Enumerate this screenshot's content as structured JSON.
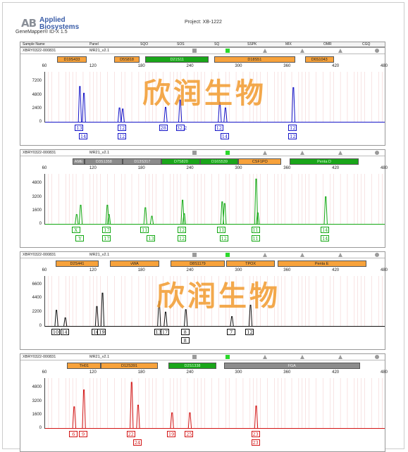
{
  "header": {
    "logo_mark": "AB",
    "logo_line1": "Applied",
    "logo_line2": "Biosystems",
    "subtitle": "GeneMapper® ID-X 1.5",
    "project": "Project: XB-1222"
  },
  "columns": [
    "Sample Name",
    "Panel",
    "SQO",
    "SOS",
    "SQ",
    "SSPK",
    "MIX",
    "OMR",
    "CGQ"
  ],
  "watermark": "欣润生物",
  "colors": {
    "blue": "#1414c8",
    "green": "#12a812",
    "black": "#111111",
    "red": "#d21414",
    "orange": "#f7a23b",
    "lime": "#1aa61a",
    "gray": "#8c8c8c"
  },
  "panels": [
    {
      "sample": "XBRY0322-000831",
      "panel": "MR21_v2.1",
      "dye": "blue",
      "x_ticks": [
        "60",
        "120",
        "180",
        "240",
        "300",
        "360",
        "420",
        "480"
      ],
      "y_ticks": [
        "7200",
        "4800",
        "2400",
        "0"
      ],
      "loci": [
        {
          "name": "D19S433",
          "color": "orange"
        },
        {
          "name": "D5S818",
          "color": "orange"
        },
        {
          "name": "D21S11",
          "color": "green"
        },
        {
          "name": "D18S51",
          "color": "orange"
        },
        {
          "name": "D6S1043",
          "color": "orange"
        }
      ],
      "chart_data": {
        "type": "line",
        "xlabel": "",
        "ylabel": "",
        "xlim": [
          60,
          480
        ],
        "ylim": [
          0,
          9000
        ],
        "peaks": [
          {
            "x": 103,
            "y": 6400
          },
          {
            "x": 108,
            "y": 5200
          },
          {
            "x": 152,
            "y": 2600
          },
          {
            "x": 156,
            "y": 2400
          },
          {
            "x": 209,
            "y": 2700
          },
          {
            "x": 227,
            "y": 4000
          },
          {
            "x": 276,
            "y": 3600
          },
          {
            "x": 283,
            "y": 2600
          },
          {
            "x": 367,
            "y": 6200
          }
        ]
      },
      "alleles": [
        {
          "x": 103,
          "row": 0,
          "label": "13"
        },
        {
          "x": 108,
          "row": 1,
          "label": "14"
        },
        {
          "x": 156,
          "row": 0,
          "label": "12"
        },
        {
          "x": 156,
          "row": 1,
          "label": "12"
        },
        {
          "x": 207,
          "row": 0,
          "label": "28"
        },
        {
          "x": 228,
          "row": 0,
          "label": "32.2"
        },
        {
          "x": 276,
          "row": 0,
          "label": "12"
        },
        {
          "x": 283,
          "row": 1,
          "label": "14"
        },
        {
          "x": 367,
          "row": 0,
          "label": "12"
        },
        {
          "x": 367,
          "row": 1,
          "label": "12"
        }
      ]
    },
    {
      "sample": "XBRY0322-000831",
      "panel": "MR21_v2.1",
      "dye": "green",
      "x_ticks": [
        "60",
        "120",
        "180",
        "240",
        "300",
        "360",
        "420",
        "480"
      ],
      "y_ticks": [
        "4800",
        "3200",
        "1600",
        "0"
      ],
      "loci": [
        {
          "name": "AME",
          "color": "gray"
        },
        {
          "name": "D3S1358",
          "color": "gray"
        },
        {
          "name": "D13S317",
          "color": "gray"
        },
        {
          "name": "D7S820",
          "color": "green"
        },
        {
          "name": "D16S539",
          "color": "green"
        },
        {
          "name": "CSF1PO",
          "color": "orange"
        },
        {
          "name": "Penta D",
          "color": "green"
        }
      ],
      "chart_data": {
        "type": "line",
        "xlabel": "",
        "ylabel": "",
        "xlim": [
          60,
          480
        ],
        "ylim": [
          0,
          6000
        ],
        "peaks": [
          {
            "x": 99,
            "y": 1200
          },
          {
            "x": 104,
            "y": 2300
          },
          {
            "x": 137,
            "y": 2300
          },
          {
            "x": 139,
            "y": 1200
          },
          {
            "x": 184,
            "y": 2000
          },
          {
            "x": 192,
            "y": 1000
          },
          {
            "x": 230,
            "y": 2900
          },
          {
            "x": 232,
            "y": 1300
          },
          {
            "x": 279,
            "y": 2700
          },
          {
            "x": 282,
            "y": 2500
          },
          {
            "x": 321,
            "y": 5400
          },
          {
            "x": 323,
            "y": 1400
          },
          {
            "x": 407,
            "y": 3300
          }
        ]
      },
      "alleles": [
        {
          "x": 99,
          "row": 0,
          "label": "X"
        },
        {
          "x": 104,
          "row": 1,
          "label": "Y"
        },
        {
          "x": 137,
          "row": 0,
          "label": "17"
        },
        {
          "x": 137,
          "row": 1,
          "label": "17"
        },
        {
          "x": 184,
          "row": 0,
          "label": "11"
        },
        {
          "x": 192,
          "row": 1,
          "label": "13"
        },
        {
          "x": 230,
          "row": 0,
          "label": "12"
        },
        {
          "x": 230,
          "row": 1,
          "label": "12"
        },
        {
          "x": 279,
          "row": 0,
          "label": "11"
        },
        {
          "x": 282,
          "row": 1,
          "label": "12"
        },
        {
          "x": 321,
          "row": 0,
          "label": "11"
        },
        {
          "x": 321,
          "row": 1,
          "label": "11"
        },
        {
          "x": 407,
          "row": 0,
          "label": "14"
        },
        {
          "x": 407,
          "row": 1,
          "label": "14"
        }
      ]
    },
    {
      "sample": "XBRY0322-000831",
      "panel": "MR21_v2.1",
      "dye": "black",
      "x_ticks": [
        "60",
        "120",
        "180",
        "240",
        "300",
        "360",
        "420",
        "480"
      ],
      "y_ticks": [
        "6600",
        "4400",
        "2200",
        "0"
      ],
      "loci": [
        {
          "name": "D2S441",
          "color": "orange"
        },
        {
          "name": "vWA",
          "color": "orange"
        },
        {
          "name": "D8S1179",
          "color": "orange"
        },
        {
          "name": "TPOX",
          "color": "orange"
        },
        {
          "name": "Penta E",
          "color": "orange"
        }
      ],
      "chart_data": {
        "type": "line",
        "xlabel": "",
        "ylabel": "",
        "xlim": [
          60,
          480
        ],
        "ylim": [
          0,
          8000
        ],
        "peaks": [
          {
            "x": 74,
            "y": 2600
          },
          {
            "x": 85,
            "y": 1400
          },
          {
            "x": 124,
            "y": 3200
          },
          {
            "x": 131,
            "y": 5300
          },
          {
            "x": 201,
            "y": 4000
          },
          {
            "x": 209,
            "y": 2300
          },
          {
            "x": 234,
            "y": 2700
          },
          {
            "x": 291,
            "y": 1600
          },
          {
            "x": 314,
            "y": 3400
          }
        ]
      },
      "alleles": [
        {
          "x": 74,
          "row": 0,
          "label": "10"
        },
        {
          "x": 85,
          "row": 0,
          "label": "14"
        },
        {
          "x": 124,
          "row": 0,
          "label": "16"
        },
        {
          "x": 131,
          "row": 0,
          "label": "19"
        },
        {
          "x": 201,
          "row": 0,
          "label": "13"
        },
        {
          "x": 209,
          "row": 0,
          "label": "17"
        },
        {
          "x": 234,
          "row": 0,
          "label": "8"
        },
        {
          "x": 234,
          "row": 1,
          "label": "8"
        },
        {
          "x": 291,
          "row": 0,
          "label": "7"
        },
        {
          "x": 314,
          "row": 0,
          "label": "12"
        }
      ]
    },
    {
      "sample": "XBRY0322-000831",
      "panel": "MR21_v2.1",
      "dye": "red",
      "x_ticks": [
        "60",
        "120",
        "180",
        "240",
        "300",
        "360",
        "420",
        "480"
      ],
      "y_ticks": [
        "4800",
        "3200",
        "1600",
        "0"
      ],
      "loci": [
        {
          "name": "TH01",
          "color": "orange"
        },
        {
          "name": "D12S391",
          "color": "orange"
        },
        {
          "name": "D2S1338",
          "color": "green"
        },
        {
          "name": "FGA",
          "color": "gray"
        }
      ],
      "chart_data": {
        "type": "line",
        "xlabel": "",
        "ylabel": "",
        "xlim": [
          60,
          480
        ],
        "ylim": [
          0,
          6000
        ],
        "peaks": [
          {
            "x": 96,
            "y": 2600
          },
          {
            "x": 108,
            "y": 4600
          },
          {
            "x": 167,
            "y": 5500
          },
          {
            "x": 175,
            "y": 2800
          },
          {
            "x": 217,
            "y": 1900
          },
          {
            "x": 239,
            "y": 1900
          },
          {
            "x": 321,
            "y": 2700
          }
        ]
      },
      "alleles": [
        {
          "x": 96,
          "row": 0,
          "label": "6"
        },
        {
          "x": 108,
          "row": 0,
          "label": "9"
        },
        {
          "x": 167,
          "row": 0,
          "label": "22"
        },
        {
          "x": 175,
          "row": 1,
          "label": "24"
        },
        {
          "x": 217,
          "row": 0,
          "label": "19"
        },
        {
          "x": 239,
          "row": 0,
          "label": "25"
        },
        {
          "x": 321,
          "row": 0,
          "label": "23"
        },
        {
          "x": 321,
          "row": 1,
          "label": "23"
        }
      ]
    }
  ]
}
